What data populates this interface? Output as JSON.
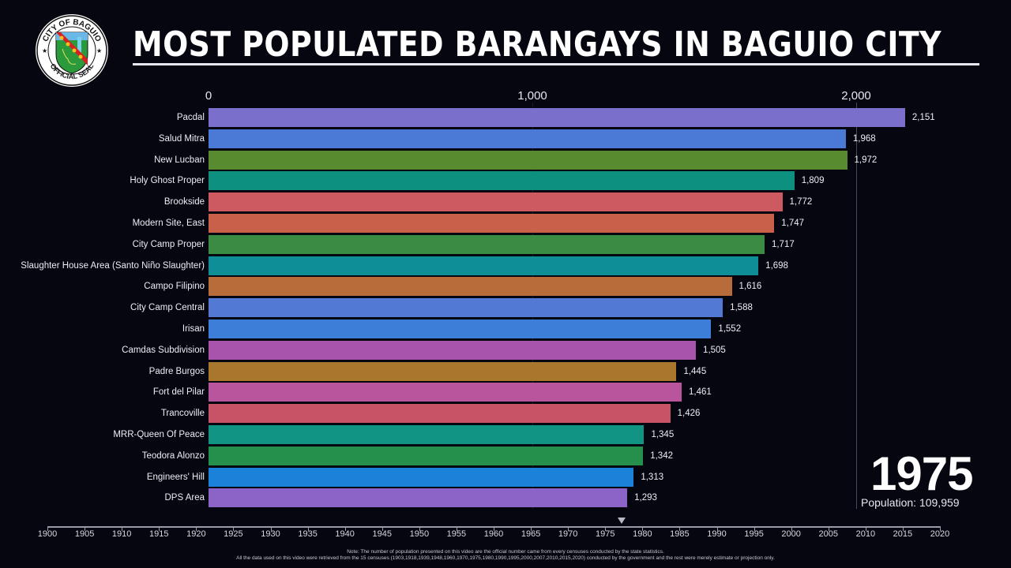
{
  "header": {
    "title": "MOST POPULATED BARANGAYS IN BAGUIO CITY",
    "seal_top_text": "CITY OF BAGUIO",
    "seal_bottom_text": "OFFICIAL SEAL"
  },
  "axis_top": {
    "ticks": [
      {
        "label": "0",
        "x": 264
      },
      {
        "label": "1,000",
        "x": 674
      },
      {
        "label": "2,000",
        "x": 1084
      }
    ]
  },
  "rows": [
    {
      "name": "Pacdal",
      "value_label": "2,151",
      "value": 2151,
      "color": "#7b6fcc"
    },
    {
      "name": "Salud Mitra",
      "value_label": "1,968",
      "value": 1968,
      "color": "#4a7ad6"
    },
    {
      "name": "New Lucban",
      "value_label": "1,972",
      "value": 1972,
      "color": "#588a30"
    },
    {
      "name": "Holy Ghost Proper",
      "value_label": "1,809",
      "value": 1809,
      "color": "#0e9080"
    },
    {
      "name": "Brookside",
      "value_label": "1,772",
      "value": 1772,
      "color": "#cc5a60"
    },
    {
      "name": "Modern Site, East",
      "value_label": "1,747",
      "value": 1747,
      "color": "#c9604a"
    },
    {
      "name": "City Camp Proper",
      "value_label": "1,717",
      "value": 1717,
      "color": "#3b8c42"
    },
    {
      "name": "Slaughter House Area (Santo Niño Slaughter)",
      "value_label": "1,698",
      "value": 1698,
      "color": "#0e8f98"
    },
    {
      "name": "Campo Filipino",
      "value_label": "1,616",
      "value": 1616,
      "color": "#b86c3a"
    },
    {
      "name": "City Camp Central",
      "value_label": "1,588",
      "value": 1588,
      "color": "#5279d4"
    },
    {
      "name": "Irisan",
      "value_label": "1,552",
      "value": 1552,
      "color": "#3d7fd8"
    },
    {
      "name": "Camdas Subdivision",
      "value_label": "1,505",
      "value": 1505,
      "color": "#a954ac"
    },
    {
      "name": "Padre Burgos",
      "value_label": "1,445",
      "value": 1445,
      "color": "#a8762c"
    },
    {
      "name": "Fort del Pilar",
      "value_label": "1,461",
      "value": 1461,
      "color": "#b8559c"
    },
    {
      "name": "Trancoville",
      "value_label": "1,426",
      "value": 1426,
      "color": "#c85266"
    },
    {
      "name": "MRR-Queen Of Peace",
      "value_label": "1,345",
      "value": 1345,
      "color": "#119484"
    },
    {
      "name": "Teodora Alonzo",
      "value_label": "1,342",
      "value": 1342,
      "color": "#24904c"
    },
    {
      "name": "Engineers' Hill",
      "value_label": "1,313",
      "value": 1313,
      "color": "#1a82d8"
    },
    {
      "name": "DPS Area",
      "value_label": "1,293",
      "value": 1293,
      "color": "#8c64c8"
    }
  ],
  "year_display": {
    "year": "1975",
    "population_label": "Population: 109,959"
  },
  "timeline": {
    "ticks": [
      "1900",
      "1905",
      "1910",
      "1915",
      "1920",
      "1925",
      "1930",
      "1935",
      "1940",
      "1945",
      "1950",
      "1955",
      "1960",
      "1965",
      "1970",
      "1975",
      "1980",
      "1985",
      "1990",
      "1995",
      "2000",
      "2005",
      "2010",
      "2015",
      "2020"
    ],
    "current_marker_year": "1976"
  },
  "notes": {
    "line1": "Note: The number of population presented on this video are the official number came from every censuses conducted by the state statistics.",
    "line2": "All the data used on this video were retrieved from the 15 censuses (1903,1918,1939,1948,1960,1970,1975,1980,1990,1995,2000,2007,2010,2015,2020) conducted by the government and the rest were merely estimate or projection only."
  },
  "chart_data": {
    "type": "bar",
    "orientation": "horizontal",
    "title": "MOST POPULATED BARANGAYS IN BAGUIO CITY",
    "subtitle": "1975 — Population: 109,959",
    "categories": [
      "Pacdal",
      "Salud Mitra",
      "New Lucban",
      "Holy Ghost Proper",
      "Brookside",
      "Modern Site, East",
      "City Camp Proper",
      "Slaughter House Area (Santo Niño Slaughter)",
      "Campo Filipino",
      "City Camp Central",
      "Irisan",
      "Camdas Subdivision",
      "Padre Burgos",
      "Fort del Pilar",
      "Trancoville",
      "MRR-Queen Of Peace",
      "Teodora Alonzo",
      "Engineers' Hill",
      "DPS Area"
    ],
    "values": [
      2151,
      1968,
      1972,
      1809,
      1772,
      1747,
      1717,
      1698,
      1616,
      1588,
      1552,
      1505,
      1445,
      1461,
      1426,
      1345,
      1342,
      1313,
      1293
    ],
    "xlabel": "",
    "ylabel": "",
    "xlim": [
      0,
      2200
    ],
    "x_ticks": [
      "0",
      "1,000",
      "2,000"
    ],
    "grid": true,
    "legend": "none",
    "time_axis": {
      "range": [
        1900,
        2020
      ],
      "step": 5,
      "current": 1975
    }
  }
}
